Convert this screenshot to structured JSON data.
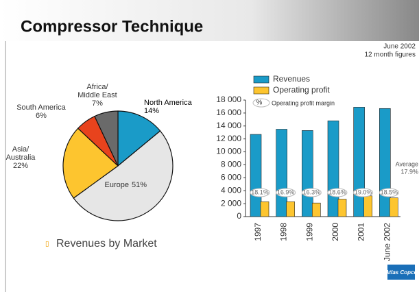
{
  "header": {
    "title": "Compressor Technique",
    "date": "June 2002",
    "period": "12 month figures"
  },
  "footer": {
    "caption": "Revenues by Market",
    "logo": "Atlas Copco"
  },
  "chart_data": [
    {
      "type": "pie",
      "categories": [
        "North America",
        "Europe",
        "Asia/\nAustralia",
        "South America",
        "Africa/\nMiddle East"
      ],
      "values": [
        14,
        51,
        22,
        6,
        7
      ],
      "value_labels": [
        "14%",
        "51%",
        "22%",
        "6%",
        "7%"
      ],
      "colors": [
        "#1a9bc8",
        "#e6e6e6",
        "#fdc52f",
        "#e8431d",
        "#6a6a6a"
      ]
    },
    {
      "type": "bar",
      "categories": [
        "1997",
        "1998",
        "1999",
        "2000",
        "2001",
        "June 2002"
      ],
      "series": [
        {
          "name": "Revenues",
          "color": "#1a9bc8",
          "values": [
            12700,
            13500,
            13300,
            14800,
            16900,
            16700
          ]
        },
        {
          "name": "Operating profit",
          "color": "#fdc52f",
          "values": [
            2300,
            2300,
            2100,
            2700,
            3200,
            2900
          ]
        },
        {
          "name": "Operating profit margin",
          "symbol": "%",
          "values": [
            18.1,
            16.9,
            16.3,
            18.6,
            19.0,
            18.5
          ],
          "value_labels": [
            "18.1%",
            "16.9%",
            "16.3%",
            "18.6%",
            "19.0%",
            "18.5%"
          ]
        }
      ],
      "annotations": [
        "Average",
        "17.9%"
      ],
      "ylim": [
        0,
        18000
      ],
      "yticks": [
        0,
        {
          "value": 2000,
          "label": "2 000"
        },
        {
          "value": 4000,
          "label": "4 000"
        },
        {
          "value": 6000,
          "label": "6 000"
        },
        {
          "value": 8000,
          "label": "8 000"
        },
        {
          "value": 10000,
          "label": "10 000"
        },
        {
          "value": 12000,
          "label": "12 000"
        },
        {
          "value": 14000,
          "label": "14 000"
        },
        {
          "value": 16000,
          "label": "16 000"
        },
        {
          "value": 18000,
          "label": "18 000"
        }
      ]
    }
  ]
}
